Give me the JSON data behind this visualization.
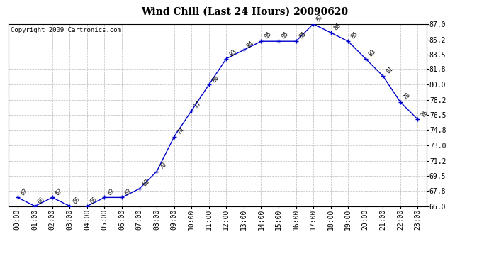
{
  "title": "Wind Chill (Last 24 Hours) 20090620",
  "copyright": "Copyright 2009 Cartronics.com",
  "hours": [
    0,
    1,
    2,
    3,
    4,
    5,
    6,
    7,
    8,
    9,
    10,
    11,
    12,
    13,
    14,
    15,
    16,
    17,
    18,
    19,
    20,
    21,
    22,
    23
  ],
  "x_labels": [
    "00:00",
    "01:00",
    "02:00",
    "03:00",
    "04:00",
    "05:00",
    "06:00",
    "07:00",
    "08:00",
    "09:00",
    "10:00",
    "11:00",
    "12:00",
    "13:00",
    "14:00",
    "15:00",
    "16:00",
    "17:00",
    "18:00",
    "19:00",
    "20:00",
    "21:00",
    "22:00",
    "23:00"
  ],
  "values": [
    67,
    66,
    67,
    66,
    66,
    67,
    67,
    68,
    70,
    74,
    77,
    80,
    83,
    84,
    85,
    85,
    85,
    87,
    86,
    85,
    83,
    81,
    78,
    76
  ],
  "point_labels": [
    "67",
    "66",
    "67",
    "66",
    "66",
    "67",
    "67",
    "68",
    "70",
    "74",
    "77",
    "80",
    "83",
    "84",
    "85",
    "85",
    "85",
    "87",
    "86",
    "85",
    "83",
    "81",
    "78",
    "76"
  ],
  "ylim_min": 66.0,
  "ylim_max": 87.0,
  "yticks": [
    66.0,
    67.8,
    69.5,
    71.2,
    73.0,
    74.8,
    76.5,
    78.2,
    80.0,
    81.8,
    83.5,
    85.2,
    87.0
  ],
  "line_color": "#0000CC",
  "marker_color": "#0000CC",
  "bg_color": "#FFFFFF",
  "grid_color": "#BBBBBB",
  "title_fontsize": 10,
  "copyright_fontsize": 6.5,
  "tick_fontsize": 7,
  "label_fontsize": 6
}
